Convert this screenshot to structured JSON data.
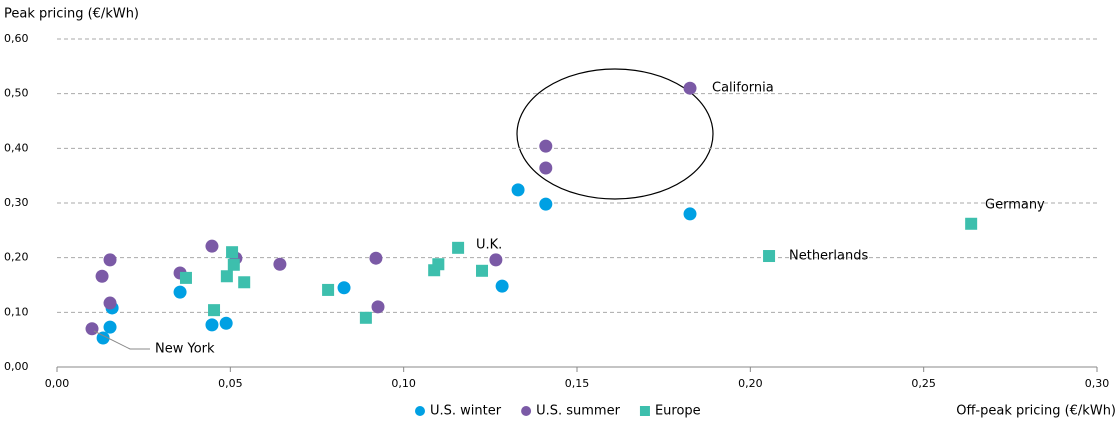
{
  "chart_data": {
    "type": "scatter",
    "x_label": "Off-peak pricing (€/kWh)",
    "y_label": "Peak pricing (€/kWh)",
    "xlim": [
      0,
      0.3
    ],
    "ylim": [
      0,
      0.6
    ],
    "xticks": [
      {
        "value": 0,
        "label": "0,00"
      },
      {
        "value": 0.05,
        "label": "0,05"
      },
      {
        "value": 0.1,
        "label": "0,10"
      },
      {
        "value": 0.15,
        "label": "0,15"
      },
      {
        "value": 0.2,
        "label": "0,20"
      },
      {
        "value": 0.25,
        "label": "0,25"
      },
      {
        "value": 0.3,
        "label": "0,30"
      }
    ],
    "yticks": [
      {
        "value": 0,
        "label": "0,00"
      },
      {
        "value": 0.1,
        "label": "0,10"
      },
      {
        "value": 0.2,
        "label": "0,20"
      },
      {
        "value": 0.3,
        "label": "0,30"
      },
      {
        "value": 0.4,
        "label": "0,40"
      },
      {
        "value": 0.5,
        "label": "0,50"
      },
      {
        "value": 0.6,
        "label": "0,60"
      }
    ],
    "grid": true,
    "legend": "bottom",
    "series": [
      {
        "name": "U.S. winter",
        "color": "#00a0e3",
        "marker": "circle",
        "x": [
          0.0133,
          0.0153,
          0.0159,
          0.0355,
          0.0447,
          0.0488,
          0.0828,
          0.1284,
          0.133,
          0.141,
          0.1826
        ],
        "values": [
          0.053,
          0.073,
          0.108,
          0.137,
          0.077,
          0.08,
          0.145,
          0.148,
          0.324,
          0.298,
          0.28
        ]
      },
      {
        "name": "U.S. summer",
        "color": "#7b5aa6",
        "marker": "circle",
        "x": [
          0.0101,
          0.013,
          0.0153,
          0.0153,
          0.0355,
          0.0447,
          0.0516,
          0.0643,
          0.092,
          0.0926,
          0.1266,
          0.141,
          0.141,
          0.1826
        ],
        "values": [
          0.07,
          0.166,
          0.196,
          0.117,
          0.172,
          0.221,
          0.199,
          0.188,
          0.199,
          0.11,
          0.196,
          0.404,
          0.364,
          0.51
        ]
      },
      {
        "name": "Europe",
        "color": "#3dbfad",
        "marker": "square",
        "x": [
          0.0372,
          0.0453,
          0.049,
          0.0505,
          0.051,
          0.054,
          0.0782,
          0.0891,
          0.1088,
          0.11,
          0.1157,
          0.1226,
          0.2054,
          0.2637
        ],
        "values": [
          0.163,
          0.104,
          0.166,
          0.21,
          0.187,
          0.155,
          0.141,
          0.09,
          0.177,
          0.188,
          0.218,
          0.176,
          0.203,
          0.262
        ]
      }
    ],
    "annotations": [
      {
        "text": "California"
      },
      {
        "text": "Germany"
      },
      {
        "text": "Netherlands"
      },
      {
        "text": "U.K."
      },
      {
        "text": "New York"
      }
    ]
  }
}
